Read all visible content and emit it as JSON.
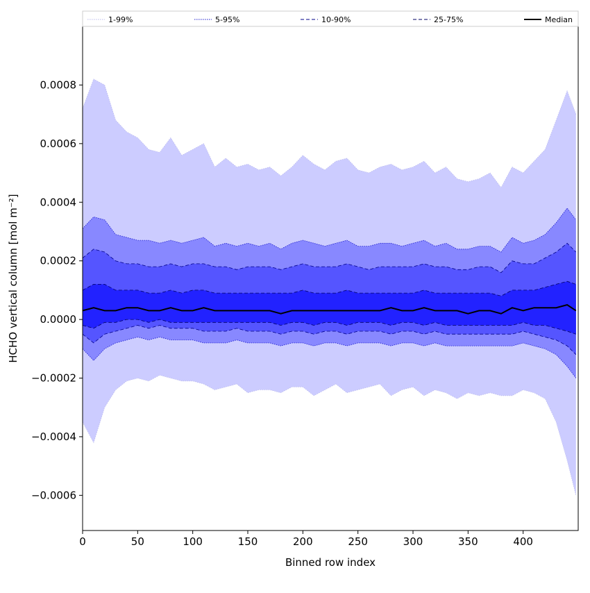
{
  "chart_data": {
    "type": "area",
    "xlabel": "Binned row index",
    "ylabel": "HCHO vertical column [mol m⁻²]",
    "xlim": [
      0,
      450
    ],
    "ylim": [
      -0.00072,
      0.001
    ],
    "xticks": [
      0,
      50,
      100,
      150,
      200,
      250,
      300,
      350,
      400
    ],
    "xtick_labels": [
      "0",
      "50",
      "100",
      "150",
      "200",
      "250",
      "300",
      "350",
      "400"
    ],
    "yticks": [
      -0.0006,
      -0.0004,
      -0.0002,
      0.0,
      0.0002,
      0.0004,
      0.0006,
      0.0008
    ],
    "ytick_labels": [
      "−0.0006",
      "−0.0004",
      "−0.0002",
      "0.0000",
      "0.0002",
      "0.0004",
      "0.0006",
      "0.0008"
    ],
    "grid": false,
    "legend_placement": "top, above plot, single row",
    "x": [
      0,
      10,
      20,
      30,
      40,
      50,
      60,
      70,
      80,
      90,
      100,
      110,
      120,
      130,
      140,
      150,
      160,
      170,
      180,
      190,
      200,
      210,
      220,
      230,
      240,
      250,
      260,
      270,
      280,
      290,
      300,
      310,
      320,
      330,
      340,
      350,
      360,
      370,
      380,
      390,
      400,
      410,
      420,
      430,
      440,
      448
    ],
    "series": [
      {
        "name": "1-99%",
        "style": "dotted thin",
        "color": "#bbbbee",
        "fill": "#ccccff",
        "upper": [
          0.00072,
          0.00082,
          0.0008,
          0.00068,
          0.00064,
          0.00062,
          0.00058,
          0.00057,
          0.00062,
          0.00056,
          0.00058,
          0.0006,
          0.00052,
          0.00055,
          0.00052,
          0.00053,
          0.00051,
          0.00052,
          0.00049,
          0.00052,
          0.00056,
          0.00053,
          0.00051,
          0.00054,
          0.00055,
          0.00051,
          0.0005,
          0.00052,
          0.00053,
          0.00051,
          0.00052,
          0.00054,
          0.0005,
          0.00052,
          0.00048,
          0.00047,
          0.00048,
          0.0005,
          0.00045,
          0.00052,
          0.0005,
          0.00054,
          0.00058,
          0.00068,
          0.00078,
          0.0007
        ],
        "lower": [
          -0.00035,
          -0.00042,
          -0.0003,
          -0.00024,
          -0.00021,
          -0.0002,
          -0.00021,
          -0.00019,
          -0.0002,
          -0.00021,
          -0.00021,
          -0.00022,
          -0.00024,
          -0.00023,
          -0.00022,
          -0.00025,
          -0.00024,
          -0.00024,
          -0.00025,
          -0.00023,
          -0.00023,
          -0.00026,
          -0.00024,
          -0.00022,
          -0.00025,
          -0.00024,
          -0.00023,
          -0.00022,
          -0.00026,
          -0.00024,
          -0.00023,
          -0.00026,
          -0.00024,
          -0.00025,
          -0.00027,
          -0.00025,
          -0.00026,
          -0.00025,
          -0.00026,
          -0.00026,
          -0.00024,
          -0.00025,
          -0.00027,
          -0.00035,
          -0.00048,
          -0.0006
        ]
      },
      {
        "name": "5-95%",
        "style": "dotted",
        "color": "#1a1acc",
        "fill": "#8888ff",
        "upper": [
          0.00031,
          0.00035,
          0.00034,
          0.00029,
          0.00028,
          0.00027,
          0.00027,
          0.00026,
          0.00027,
          0.00026,
          0.00027,
          0.00028,
          0.00025,
          0.00026,
          0.00025,
          0.00026,
          0.00025,
          0.00026,
          0.00024,
          0.00026,
          0.00027,
          0.00026,
          0.00025,
          0.00026,
          0.00027,
          0.00025,
          0.00025,
          0.00026,
          0.00026,
          0.00025,
          0.00026,
          0.00027,
          0.00025,
          0.00026,
          0.00024,
          0.00024,
          0.00025,
          0.00025,
          0.00023,
          0.00028,
          0.00026,
          0.00027,
          0.00029,
          0.00033,
          0.00038,
          0.00034
        ],
        "lower": [
          -0.0001,
          -0.00014,
          -0.0001,
          -8e-05,
          -7e-05,
          -6e-05,
          -7e-05,
          -6e-05,
          -7e-05,
          -7e-05,
          -7e-05,
          -8e-05,
          -8e-05,
          -8e-05,
          -7e-05,
          -8e-05,
          -8e-05,
          -8e-05,
          -9e-05,
          -8e-05,
          -8e-05,
          -9e-05,
          -8e-05,
          -8e-05,
          -9e-05,
          -8e-05,
          -8e-05,
          -8e-05,
          -9e-05,
          -8e-05,
          -8e-05,
          -9e-05,
          -8e-05,
          -9e-05,
          -9e-05,
          -9e-05,
          -9e-05,
          -9e-05,
          -9e-05,
          -9e-05,
          -8e-05,
          -9e-05,
          -0.0001,
          -0.00012,
          -0.00016,
          -0.0002
        ]
      },
      {
        "name": "10-90%",
        "style": "dashed",
        "color": "#000088",
        "fill": "#5555ff",
        "upper": [
          0.00021,
          0.00024,
          0.00023,
          0.0002,
          0.00019,
          0.00019,
          0.00018,
          0.00018,
          0.00019,
          0.00018,
          0.00019,
          0.00019,
          0.00018,
          0.00018,
          0.00017,
          0.00018,
          0.00018,
          0.00018,
          0.00017,
          0.00018,
          0.00019,
          0.00018,
          0.00018,
          0.00018,
          0.00019,
          0.00018,
          0.00017,
          0.00018,
          0.00018,
          0.00018,
          0.00018,
          0.00019,
          0.00018,
          0.00018,
          0.00017,
          0.00017,
          0.00018,
          0.00018,
          0.00016,
          0.0002,
          0.00019,
          0.00019,
          0.00021,
          0.00023,
          0.00026,
          0.00023
        ],
        "lower": [
          -5e-05,
          -8e-05,
          -5e-05,
          -4e-05,
          -3e-05,
          -2e-05,
          -3e-05,
          -2e-05,
          -3e-05,
          -3e-05,
          -3e-05,
          -4e-05,
          -4e-05,
          -4e-05,
          -3e-05,
          -4e-05,
          -4e-05,
          -4e-05,
          -5e-05,
          -4e-05,
          -4e-05,
          -5e-05,
          -4e-05,
          -4e-05,
          -5e-05,
          -4e-05,
          -4e-05,
          -4e-05,
          -5e-05,
          -4e-05,
          -4e-05,
          -5e-05,
          -4e-05,
          -5e-05,
          -5e-05,
          -5e-05,
          -5e-05,
          -5e-05,
          -5e-05,
          -5e-05,
          -4e-05,
          -5e-05,
          -6e-05,
          -7e-05,
          -9e-05,
          -0.00012
        ]
      },
      {
        "name": "25-75%",
        "style": "dashed",
        "color": "#000066",
        "fill": "#2222ff",
        "upper": [
          0.0001,
          0.00012,
          0.00012,
          0.0001,
          0.0001,
          0.0001,
          9e-05,
          9e-05,
          0.0001,
          9e-05,
          0.0001,
          0.0001,
          9e-05,
          9e-05,
          9e-05,
          9e-05,
          9e-05,
          9e-05,
          9e-05,
          9e-05,
          0.0001,
          9e-05,
          9e-05,
          9e-05,
          0.0001,
          9e-05,
          9e-05,
          9e-05,
          9e-05,
          9e-05,
          9e-05,
          0.0001,
          9e-05,
          9e-05,
          9e-05,
          9e-05,
          9e-05,
          9e-05,
          8e-05,
          0.0001,
          0.0001,
          0.0001,
          0.00011,
          0.00012,
          0.00013,
          0.00012
        ],
        "lower": [
          -2e-05,
          -3e-05,
          -1e-05,
          -1e-05,
          0.0,
          0.0,
          -1e-05,
          0.0,
          -1e-05,
          -1e-05,
          -1e-05,
          -1e-05,
          -1e-05,
          -1e-05,
          -1e-05,
          -1e-05,
          -1e-05,
          -1e-05,
          -2e-05,
          -1e-05,
          -1e-05,
          -2e-05,
          -1e-05,
          -1e-05,
          -2e-05,
          -1e-05,
          -1e-05,
          -1e-05,
          -2e-05,
          -1e-05,
          -1e-05,
          -2e-05,
          -1e-05,
          -2e-05,
          -2e-05,
          -2e-05,
          -2e-05,
          -2e-05,
          -2e-05,
          -2e-05,
          -1e-05,
          -2e-05,
          -2e-05,
          -3e-05,
          -4e-05,
          -5e-05
        ]
      },
      {
        "name": "Median",
        "style": "solid thick",
        "color": "#000000",
        "values": [
          3e-05,
          4e-05,
          3e-05,
          3e-05,
          4e-05,
          4e-05,
          3e-05,
          3e-05,
          4e-05,
          3e-05,
          3e-05,
          4e-05,
          3e-05,
          3e-05,
          3e-05,
          3e-05,
          3e-05,
          3e-05,
          2e-05,
          3e-05,
          3e-05,
          3e-05,
          3e-05,
          3e-05,
          3e-05,
          3e-05,
          3e-05,
          3e-05,
          4e-05,
          3e-05,
          3e-05,
          4e-05,
          3e-05,
          3e-05,
          3e-05,
          2e-05,
          3e-05,
          3e-05,
          2e-05,
          4e-05,
          3e-05,
          4e-05,
          4e-05,
          4e-05,
          5e-05,
          3e-05
        ]
      }
    ]
  }
}
